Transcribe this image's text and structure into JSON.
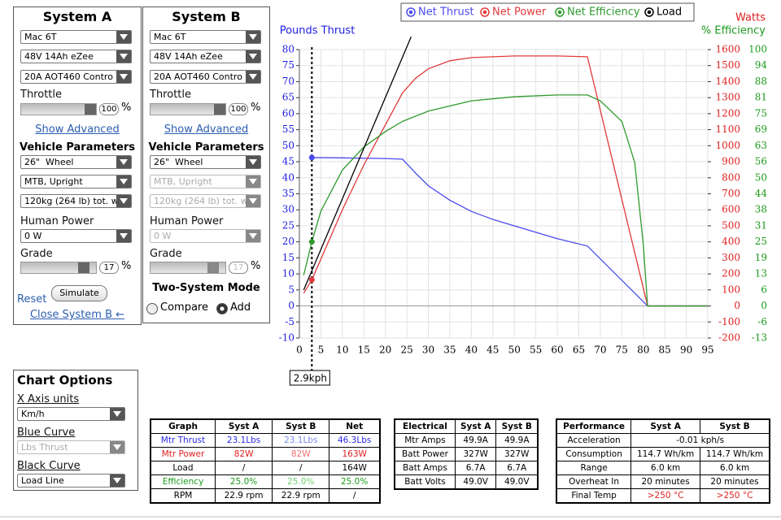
{
  "system_a": {
    "title": "System A",
    "motor": "Mac 6T",
    "battery": "48V 14Ah eZee",
    "controller": "20A AOT460 Contro",
    "throttle_label": "Throttle",
    "throttle_value": 100,
    "throttle_unit": "%",
    "show_advanced": "Show Advanced",
    "vehicle_title": "Vehicle Parameters",
    "wheel": "26\"  Wheel",
    "position": "MTB, Upright",
    "weight": "120kg (264 lb) tot. w",
    "human_power_label": "Human Power",
    "human_power": "0 W",
    "grade_label": "Grade",
    "grade_value": 17,
    "grade_unit": "%",
    "reset": "Reset",
    "simulate": "Simulate",
    "close": "Close System B ←"
  },
  "system_b": {
    "title": "System B",
    "motor": "Mac 6T",
    "battery": "48V 14Ah eZee",
    "controller": "20A AOT460 Contro",
    "throttle_label": "Throttle",
    "throttle_value": 100,
    "throttle_unit": "%",
    "show_advanced": "Show Advanced",
    "vehicle_title": "Vehicle Parameters",
    "wheel": "26\"  Wheel",
    "position": "MTB, Upright",
    "weight": "120kg (264 lb) tot. w",
    "human_power_label": "Human Power",
    "human_power": "0 W",
    "grade_label": "Grade",
    "grade_value": 17,
    "grade_unit": "%",
    "mode_title": "Two-System Mode",
    "compare": "Compare",
    "add": "Add"
  },
  "chart_options": {
    "title": "Chart Options",
    "x_units_label": "X Axis units",
    "x_units": "Km/h",
    "blue_label": "Blue Curve",
    "blue": "Lbs Thrust",
    "black_label": "Black Curve",
    "black": "Load Line"
  },
  "chart_data": {
    "type": "line",
    "y_title": "Pounds Thrust",
    "y2_title": "Watts",
    "y3_title": "% Efficiency",
    "grid": true,
    "xlim": [
      0,
      95
    ],
    "xticks": [
      0,
      5,
      10,
      15,
      20,
      25,
      30,
      35,
      40,
      45,
      50,
      55,
      60,
      65,
      70,
      75,
      80,
      85,
      90,
      95
    ],
    "ylim": [
      -10,
      80
    ],
    "yticks": [
      -10,
      -5,
      0,
      5,
      10,
      15,
      20,
      25,
      30,
      35,
      40,
      45,
      50,
      55,
      60,
      65,
      70,
      75,
      80
    ],
    "y2lim": [
      -200,
      1600
    ],
    "y2ticks": [
      -200,
      -100,
      0,
      100,
      200,
      300,
      400,
      500,
      600,
      700,
      800,
      900,
      1000,
      1100,
      1200,
      1300,
      1400,
      1500,
      1600
    ],
    "y3lim": [
      -12.5,
      100
    ],
    "y3ticks": [
      {
        "value": -12.5,
        "label": "-13"
      },
      {
        "value": -6.25,
        "label": "-6"
      },
      0,
      {
        "value": 6.25,
        "label": "6"
      },
      {
        "value": 12.5,
        "label": "13"
      },
      {
        "value": 18.75,
        "label": "19"
      },
      25,
      {
        "value": 31.25,
        "label": "31"
      },
      {
        "value": 37.5,
        "label": "38"
      },
      {
        "value": 43.75,
        "label": "44"
      },
      50,
      {
        "value": 56.25,
        "label": "56"
      },
      {
        "value": 62.5,
        "label": "63"
      },
      {
        "value": 68.75,
        "label": "69"
      },
      75,
      {
        "value": 81.25,
        "label": "81"
      },
      {
        "value": 87.5,
        "label": "88"
      },
      {
        "value": 93.75,
        "label": "94"
      },
      100
    ],
    "series": [
      {
        "name": "Net Thrust",
        "color": "#4a4af0",
        "axis": "y",
        "x": [
          2.9,
          10,
          20,
          24,
          27,
          30,
          35,
          40,
          45,
          50,
          55,
          60,
          67,
          81,
          95
        ],
        "values": [
          46.3,
          46.2,
          46,
          45.8,
          41.5,
          37.5,
          33,
          29.5,
          27,
          25,
          23,
          21,
          18.7,
          0,
          0
        ]
      },
      {
        "name": "Net Power",
        "color": "#e23a3a",
        "axis": "y2",
        "x": [
          1,
          2.9,
          10,
          15,
          20,
          24,
          27,
          30,
          35,
          40,
          50,
          60,
          67,
          81,
          95
        ],
        "values": [
          80,
          163,
          600,
          880,
          1130,
          1330,
          1420,
          1480,
          1530,
          1550,
          1560,
          1560,
          1555,
          0,
          0
        ]
      },
      {
        "name": "Net Efficiency",
        "color": "#2e9a2e",
        "axis": "y3",
        "x": [
          1,
          2.9,
          5,
          10,
          15,
          20,
          24,
          30,
          40,
          50,
          60,
          67,
          70,
          75,
          78,
          80,
          81,
          95
        ],
        "values": [
          12,
          25,
          37,
          53,
          62,
          68,
          72,
          76,
          80,
          81.6,
          82.3,
          82.3,
          80,
          72,
          56,
          24,
          0,
          0
        ]
      },
      {
        "name": "Load",
        "color": "#000000",
        "axis": "y2",
        "x": [
          1,
          26
        ],
        "values": [
          100,
          1680
        ]
      }
    ],
    "cursor": {
      "x": 2.9,
      "label": "2.9kph",
      "values": [
        46.3,
        163,
        25
      ]
    }
  },
  "tables": {
    "graph": {
      "header": [
        "Graph",
        "Syst A",
        "Syst B",
        "Net"
      ],
      "rows": [
        [
          "Mtr Thrust",
          "23.1Lbs",
          "23.1Lbs",
          "46.3Lbs"
        ],
        [
          "Mtr Power",
          "82W",
          "82W",
          "163W"
        ],
        [
          "Load",
          "/",
          "/",
          "164W"
        ],
        [
          "Efficiency",
          "25.0%",
          "25.0%",
          "25.0%"
        ],
        [
          "RPM",
          "22.9 rpm",
          "22.9 rpm",
          "/"
        ]
      ]
    },
    "electrical": {
      "header": [
        "Electrical",
        "Syst A",
        "Syst B"
      ],
      "rows": [
        [
          "Mtr Amps",
          "49.9A",
          "49.9A"
        ],
        [
          "Batt Power",
          "327W",
          "327W"
        ],
        [
          "Batt Amps",
          "6.7A",
          "6.7A"
        ],
        [
          "Batt Volts",
          "49.0V",
          "49.0V"
        ]
      ]
    },
    "performance": {
      "header": [
        "Performance",
        "Syst A",
        "Syst B"
      ],
      "rows": [
        [
          "Acceleration",
          "-0.01 kph/s"
        ],
        [
          "Consumption",
          "114.7 Wh/km",
          "114.7 Wh/km"
        ],
        [
          "Range",
          "6.0 km",
          "6.0 km"
        ],
        [
          "Overheat In",
          "20 minutes",
          "20 minutes"
        ],
        [
          "Final Temp",
          ">250 °C",
          ">250 °C"
        ]
      ]
    }
  }
}
